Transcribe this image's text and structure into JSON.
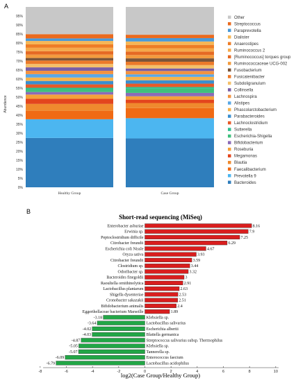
{
  "panel_labels": {
    "a": "A",
    "b": "B"
  },
  "chart_data": [
    {
      "type": "bar",
      "stacked": true,
      "normalized": true,
      "ylabel": "Abundance",
      "ylim": [
        0,
        1
      ],
      "yticks": [
        "0%",
        "5%",
        "10%",
        "15%",
        "20%",
        "25%",
        "30%",
        "35%",
        "40%",
        "45%",
        "50%",
        "55%",
        "60%",
        "65%",
        "70%",
        "75%",
        "80%",
        "85%",
        "90%",
        "95%"
      ],
      "categories": [
        "Healthy Group",
        "Case Group"
      ],
      "legend_placement": "right",
      "series": [
        {
          "name": "Bacteroides",
          "color": "#2f7ebc",
          "values": [
            0.29,
            0.29
          ]
        },
        {
          "name": "Prevotella 9",
          "color": "#4cb6f0",
          "values": [
            0.11,
            0.12
          ]
        },
        {
          "name": "Faecalibacterium",
          "color": "#f06a14",
          "values": [
            0.05,
            0.06
          ]
        },
        {
          "name": "Blautia",
          "color": "#ef8a2e",
          "values": [
            0.04,
            0.03
          ]
        },
        {
          "name": "Megamonas",
          "color": "#e3451d",
          "values": [
            0.03,
            0.02
          ]
        },
        {
          "name": "Roseburia",
          "color": "#f4a13a",
          "values": [
            0.025,
            0.02
          ]
        },
        {
          "name": "Bifidobacterium",
          "color": "#8b6bb8",
          "values": [
            0.015,
            0.02
          ]
        },
        {
          "name": "Escherichia-Shigella",
          "color": "#3fc07d",
          "values": [
            0.015,
            0.025
          ]
        },
        {
          "name": "Sutterella",
          "color": "#2fbf8f",
          "values": [
            0.01,
            0.01
          ]
        },
        {
          "name": "Lachnoclostridium",
          "color": "#e85a28",
          "values": [
            0.02,
            0.02
          ]
        },
        {
          "name": "Parabacteroides",
          "color": "#3a8fd0",
          "values": [
            0.02,
            0.02
          ]
        },
        {
          "name": "Phascolarctobacterium",
          "color": "#f7b24a",
          "values": [
            0.02,
            0.02
          ]
        },
        {
          "name": "Alistipes",
          "color": "#5aa8e6",
          "values": [
            0.02,
            0.015
          ]
        },
        {
          "name": "Lachnospira",
          "color": "#f29340",
          "values": [
            0.02,
            0.02
          ]
        },
        {
          "name": "Collinsella",
          "color": "#7a5ea6",
          "values": [
            0.02,
            0.015
          ]
        },
        {
          "name": "Subdoligranulum",
          "color": "#f4c06a",
          "values": [
            0.02,
            0.02
          ]
        },
        {
          "name": "Fusicatenibacter",
          "color": "#ec7a2a",
          "values": [
            0.02,
            0.02
          ]
        },
        {
          "name": "Fusobacterium",
          "color": "#7b5438",
          "values": [
            0.015,
            0.02
          ]
        },
        {
          "name": "Ruminococcaceae UCG-002",
          "color": "#f39b3e",
          "values": [
            0.02,
            0.02
          ]
        },
        {
          "name": "[Ruminococcus] torques group",
          "color": "#e56a24",
          "values": [
            0.02,
            0.02
          ]
        },
        {
          "name": "Ruminococcus 2",
          "color": "#f5a94b",
          "values": [
            0.02,
            0.02
          ]
        },
        {
          "name": "Anaerostipes",
          "color": "#ee7d26",
          "values": [
            0.02,
            0.02
          ]
        },
        {
          "name": "Dialister",
          "color": "#f6b656",
          "values": [
            0.02,
            0.02
          ]
        },
        {
          "name": "Paraprevotella",
          "color": "#4a9ad8",
          "values": [
            0.015,
            0.02
          ]
        },
        {
          "name": "Streptococcus",
          "color": "#ea6a1e",
          "values": [
            0.025,
            0.02
          ]
        },
        {
          "name": "Other",
          "color": "#c8c8c8",
          "values": [
            0.16,
            0.165
          ]
        }
      ]
    },
    {
      "type": "bar",
      "orientation": "horizontal",
      "title": "Short-read sequencing (MiSeq)",
      "xlabel": "log2(Case Group/Healthy Group)",
      "ylabel": "",
      "xlim": [
        -8,
        10
      ],
      "xticks": [
        -8,
        -6,
        -4,
        -2,
        0,
        2,
        4,
        6,
        8,
        10
      ],
      "positive_color": "#d91e1e",
      "negative_color": "#22a646",
      "grid": false,
      "bars": [
        {
          "label": "Enterobacter asburiae",
          "value": 8.16,
          "value_label": "8.16"
        },
        {
          "label": "Erwinia sp.",
          "value": 7.9,
          "value_label": "7.9"
        },
        {
          "label": "Peptoclostridium difficile",
          "value": 7.25,
          "value_label": "7.25"
        },
        {
          "label": "Citrobacter freundii",
          "value": 6.29,
          "value_label": "6.29"
        },
        {
          "label": "Escherichia coli Nissle",
          "value": 4.67,
          "value_label": "4.67"
        },
        {
          "label": "Oryza sativa",
          "value": 3.93,
          "value_label": "3.93"
        },
        {
          "label": "Citrobacter freundii",
          "value": 3.59,
          "value_label": "3.59"
        },
        {
          "label": "Clostridium sp.",
          "value": 3.44,
          "value_label": "3.44"
        },
        {
          "label": "Odoribacter sp.",
          "value": 3.32,
          "value_label": "3.32"
        },
        {
          "label": "Bacteroides finegoldii",
          "value": 3,
          "value_label": "3"
        },
        {
          "label": "Raoultella ornithinolytica",
          "value": 2.91,
          "value_label": "2.91"
        },
        {
          "label": "Lactobacillus plantarum",
          "value": 2.63,
          "value_label": "2.63"
        },
        {
          "label": "Shigella dysenteriae",
          "value": 2.53,
          "value_label": "2.53"
        },
        {
          "label": "Cronobacter sakazakii",
          "value": 2.51,
          "value_label": "2.51"
        },
        {
          "label": "Bifidobacterium animalis",
          "value": 2.4,
          "value_label": "2.4"
        },
        {
          "label": "Eggerthellaceae bacterium Marseille",
          "value": 1.89,
          "value_label": "1.89"
        },
        {
          "label": "Klebsiella sp.",
          "value": -3.18,
          "value_label": "-3.18"
        },
        {
          "label": "Lactobacillus salivarius",
          "value": -3.64,
          "value_label": "-3.64"
        },
        {
          "label": "Escherichia albertii",
          "value": -4.02,
          "value_label": "-4.02"
        },
        {
          "label": "Blattella germanica",
          "value": -4.03,
          "value_label": "-4.03"
        },
        {
          "label": "Streptococcus salivarius subsp. Thermophilus",
          "value": -4.87,
          "value_label": "-4.87"
        },
        {
          "label": "Klebsiella sp.",
          "value": -5.05,
          "value_label": "-5.05"
        },
        {
          "label": "Tannerella sp.",
          "value": -5.07,
          "value_label": "-5.07"
        },
        {
          "label": "Enterococcus faecium",
          "value": -6.09,
          "value_label": "-6.09"
        },
        {
          "label": "Lactobacillus acidophilus",
          "value": -6.79,
          "value_label": "-6.79"
        }
      ]
    }
  ]
}
